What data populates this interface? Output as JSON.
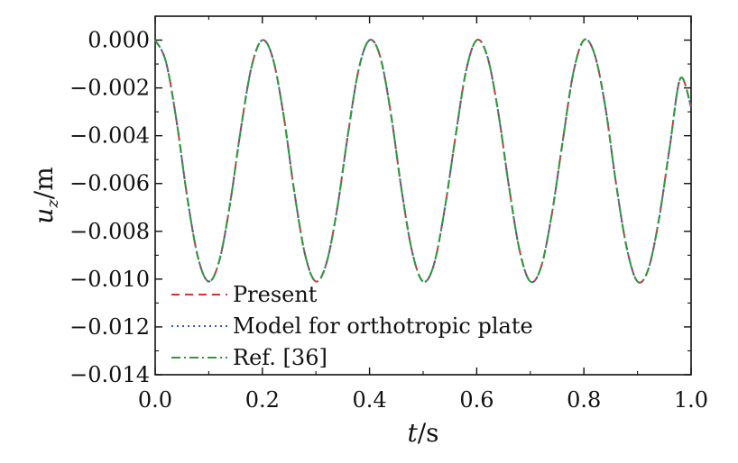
{
  "chart_data": {
    "type": "line",
    "title": "",
    "xlabel": {
      "var": "t",
      "unit": "/s"
    },
    "ylabel": {
      "var": "u",
      "sub": "z",
      "unit": "/m"
    },
    "xlim": [
      0.0,
      1.0
    ],
    "ylim": [
      -0.014,
      0.001
    ],
    "x_ticks": [
      "0.0",
      "0.2",
      "0.4",
      "0.6",
      "0.8",
      "1.0"
    ],
    "y_ticks": [
      "0.000",
      "−0.002",
      "−0.004",
      "−0.006",
      "−0.008",
      "−0.010",
      "−0.012",
      "−0.014"
    ],
    "legend_position": "bottom-left",
    "grid": false,
    "series": [
      {
        "name": "Present",
        "color": "#e0303a",
        "style": "dashed",
        "x": [
          0.0,
          0.02,
          0.04,
          0.06,
          0.08,
          0.1,
          0.12,
          0.14,
          0.16,
          0.18,
          0.2,
          0.22,
          0.24,
          0.26,
          0.28,
          0.3,
          0.32,
          0.34,
          0.36,
          0.38,
          0.4,
          0.42,
          0.44,
          0.46,
          0.48,
          0.5,
          0.52,
          0.54,
          0.56,
          0.58,
          0.6,
          0.62,
          0.64,
          0.66,
          0.68,
          0.7,
          0.72,
          0.74,
          0.76,
          0.78,
          0.8,
          0.82,
          0.84,
          0.86,
          0.88,
          0.9,
          0.92,
          0.94,
          0.96,
          0.98,
          1.0
        ],
        "y": [
          0.0,
          -0.0009,
          -0.0034,
          -0.0066,
          -0.0091,
          -0.0101,
          -0.0092,
          -0.0068,
          -0.0037,
          -0.0011,
          0.0,
          -0.0008,
          -0.0032,
          -0.0064,
          -0.009,
          -0.0101,
          -0.0093,
          -0.007,
          -0.0039,
          -0.0012,
          0.0,
          -0.0007,
          -0.0031,
          -0.0063,
          -0.0089,
          -0.0101,
          -0.0094,
          -0.0071,
          -0.0041,
          -0.0013,
          0.0,
          -0.0007,
          -0.003,
          -0.0061,
          -0.0088,
          -0.0101,
          -0.0095,
          -0.0073,
          -0.0043,
          -0.0014,
          0.0,
          -0.0006,
          -0.0028,
          -0.006,
          -0.0087,
          -0.0101,
          -0.0096,
          -0.0075,
          -0.0045,
          -0.0016,
          -0.0028
        ]
      },
      {
        "name": "Model for orthotropic plate",
        "color": "#3060c8",
        "style": "dotted",
        "x": [
          0.0,
          0.02,
          0.04,
          0.06,
          0.08,
          0.1,
          0.12,
          0.14,
          0.16,
          0.18,
          0.2,
          0.22,
          0.24,
          0.26,
          0.28,
          0.3,
          0.32,
          0.34,
          0.36,
          0.38,
          0.4,
          0.42,
          0.44,
          0.46,
          0.48,
          0.5,
          0.52,
          0.54,
          0.56,
          0.58,
          0.6,
          0.62,
          0.64,
          0.66,
          0.68,
          0.7,
          0.72,
          0.74,
          0.76,
          0.78,
          0.8,
          0.82,
          0.84,
          0.86,
          0.88,
          0.9,
          0.92,
          0.94,
          0.96,
          0.98,
          1.0
        ],
        "y": [
          0.0,
          -0.0009,
          -0.0034,
          -0.0066,
          -0.0091,
          -0.0101,
          -0.0092,
          -0.0068,
          -0.0037,
          -0.0011,
          0.0,
          -0.0008,
          -0.0032,
          -0.0064,
          -0.009,
          -0.0101,
          -0.0093,
          -0.007,
          -0.0039,
          -0.0012,
          0.0,
          -0.0007,
          -0.0031,
          -0.0063,
          -0.0089,
          -0.0101,
          -0.0094,
          -0.0071,
          -0.0041,
          -0.0013,
          0.0,
          -0.0007,
          -0.003,
          -0.0061,
          -0.0088,
          -0.0101,
          -0.0095,
          -0.0073,
          -0.0043,
          -0.0014,
          0.0,
          -0.0006,
          -0.0028,
          -0.006,
          -0.0087,
          -0.0101,
          -0.0096,
          -0.0075,
          -0.0045,
          -0.0016,
          -0.0028
        ]
      },
      {
        "name": "Ref. [36]",
        "color": "#2e9a3c",
        "style": "dashdot",
        "x": [
          0.0,
          0.02,
          0.04,
          0.06,
          0.08,
          0.1,
          0.12,
          0.14,
          0.16,
          0.18,
          0.2,
          0.22,
          0.24,
          0.26,
          0.28,
          0.3,
          0.32,
          0.34,
          0.36,
          0.38,
          0.4,
          0.42,
          0.44,
          0.46,
          0.48,
          0.5,
          0.52,
          0.54,
          0.56,
          0.58,
          0.6,
          0.62,
          0.64,
          0.66,
          0.68,
          0.7,
          0.72,
          0.74,
          0.76,
          0.78,
          0.8,
          0.82,
          0.84,
          0.86,
          0.88,
          0.9,
          0.92,
          0.94,
          0.96,
          0.98,
          1.0
        ],
        "y": [
          0.0,
          -0.0009,
          -0.0034,
          -0.0066,
          -0.0091,
          -0.0101,
          -0.0092,
          -0.0068,
          -0.0037,
          -0.0011,
          0.0,
          -0.0008,
          -0.0032,
          -0.0064,
          -0.009,
          -0.0101,
          -0.0093,
          -0.007,
          -0.0039,
          -0.0012,
          0.0,
          -0.0007,
          -0.0031,
          -0.0063,
          -0.0089,
          -0.0101,
          -0.0094,
          -0.0071,
          -0.0041,
          -0.0013,
          0.0,
          -0.0007,
          -0.003,
          -0.0061,
          -0.0088,
          -0.0101,
          -0.0095,
          -0.0073,
          -0.0043,
          -0.0014,
          0.0,
          -0.0006,
          -0.0028,
          -0.006,
          -0.0087,
          -0.0101,
          -0.0096,
          -0.0075,
          -0.0045,
          -0.0016,
          -0.0028
        ]
      }
    ]
  }
}
